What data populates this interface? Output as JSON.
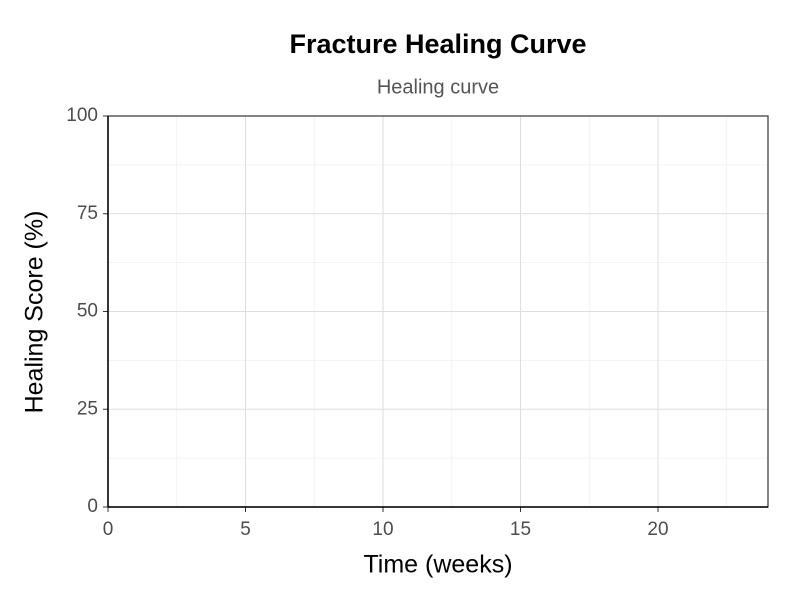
{
  "chart_data": {
    "type": "line",
    "title": "Fracture Healing Curve",
    "subtitle": "Healing curve",
    "x_label": "Time (weeks)",
    "y_label": "Healing Score (%)",
    "xlim": [
      0,
      24
    ],
    "xticks": [
      0,
      5,
      10,
      15,
      20
    ],
    "ylim": [
      0,
      100
    ],
    "yticks": [
      0,
      25,
      50,
      75,
      100
    ],
    "grid": true
  }
}
